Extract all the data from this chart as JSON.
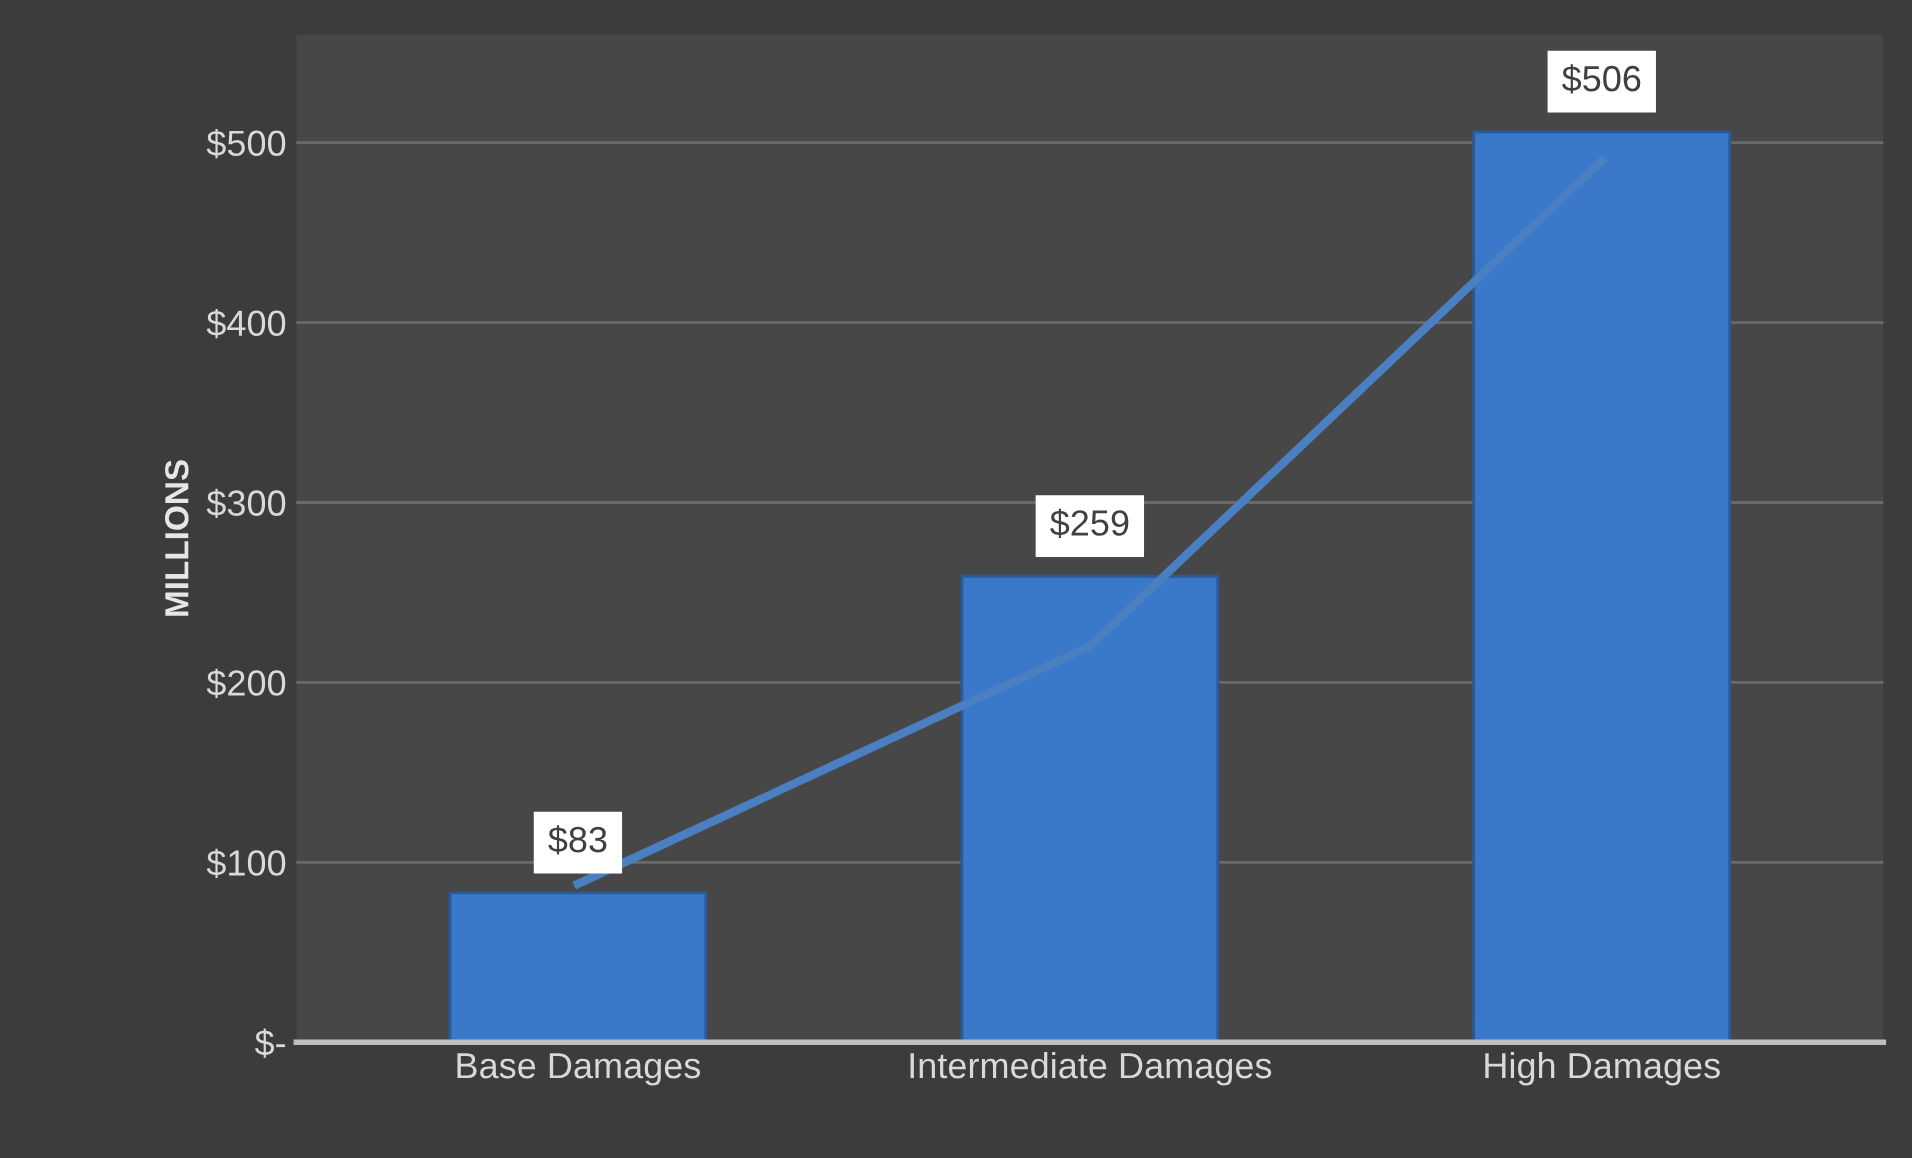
{
  "chart_data": {
    "type": "bar",
    "ylabel": "MILLIONS",
    "categories": [
      "Base Damages",
      "Intermediate Damages",
      "High Damages"
    ],
    "series": [
      {
        "color": "#3a78c9",
        "values": [
          83,
          259,
          506
        ],
        "value_labels": [
          "$83",
          "$259",
          "$506"
        ]
      },
      {
        "type": "line",
        "color": "#4a7fc1",
        "values": [
          88,
          220,
          490
        ]
      }
    ],
    "ylim": [
      0,
      560
    ],
    "yticks": [
      {
        "value": 0,
        "label": "$-"
      },
      {
        "value": 100,
        "label": "$100"
      },
      {
        "value": 200,
        "label": "$200"
      },
      {
        "value": 300,
        "label": "$300"
      },
      {
        "value": 400,
        "label": "$400"
      },
      {
        "value": 500,
        "label": "$500"
      }
    ],
    "grid": "y"
  }
}
